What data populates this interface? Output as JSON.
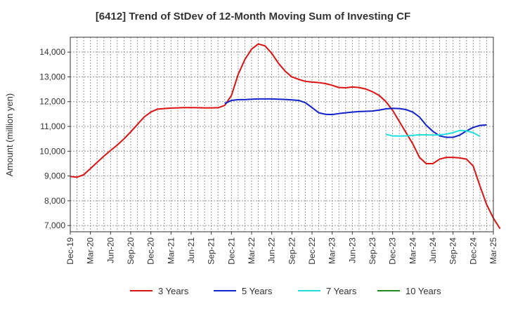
{
  "chart_data": {
    "type": "line",
    "title": "[6412]  Trend of StDev of 12-Month Moving Sum of Investing CF",
    "xlabel": "",
    "ylabel": "Amount (million yen)",
    "ylim": [
      6750,
      14600
    ],
    "yticks": [
      7000,
      8000,
      9000,
      10000,
      11000,
      12000,
      13000,
      14000
    ],
    "ytick_labels": [
      "7,000",
      "8,000",
      "9,000",
      "10,000",
      "11,000",
      "12,000",
      "13,000",
      "14,000"
    ],
    "xtick_labels": [
      "Dec-19",
      "Mar-20",
      "Jun-20",
      "Sep-20",
      "Dec-20",
      "Mar-21",
      "Jun-21",
      "Sep-21",
      "Dec-21",
      "Mar-22",
      "Jun-22",
      "Sep-22",
      "Dec-22",
      "Mar-23",
      "Jun-23",
      "Sep-23",
      "Dec-23",
      "Mar-24",
      "Jun-24",
      "Sep-24",
      "Dec-24",
      "Mar-25"
    ],
    "x_start": "Dec-19",
    "x_end": "Mar-25",
    "grid": true,
    "legend_position": "bottom",
    "series": [
      {
        "name": "3 Years",
        "color": "#dd1111",
        "start": "Dec-19",
        "values": [
          8980,
          8950,
          9050,
          9300,
          9550,
          9800,
          10030,
          10250,
          10500,
          10780,
          11080,
          11380,
          11580,
          11700,
          11720,
          11740,
          11750,
          11760,
          11760,
          11755,
          11750,
          11750,
          11755,
          11850,
          12250,
          13100,
          13700,
          14120,
          14330,
          14250,
          13950,
          13550,
          13230,
          13000,
          12900,
          12820,
          12790,
          12770,
          12730,
          12660,
          12570,
          12560,
          12590,
          12570,
          12510,
          12400,
          12250,
          12000,
          11650,
          11200,
          10750,
          10300,
          9750,
          9500,
          9500,
          9680,
          9750,
          9750,
          9730,
          9680,
          9400,
          8600,
          7850,
          7300,
          6870
        ]
      },
      {
        "name": "5 Years",
        "color": "#1122cc",
        "start": "Nov-21",
        "values": [
          11920,
          12050,
          12080,
          12080,
          12100,
          12110,
          12110,
          12110,
          12100,
          12090,
          12070,
          12050,
          11960,
          11760,
          11550,
          11490,
          11480,
          11520,
          11550,
          11580,
          11600,
          11610,
          11620,
          11660,
          11710,
          11730,
          11720,
          11680,
          11580,
          11380,
          11050,
          10800,
          10620,
          10560,
          10560,
          10650,
          10820,
          10960,
          11040,
          11060
        ]
      },
      {
        "name": "7 Years",
        "color": "#22dddd",
        "start": "Nov-23",
        "values": [
          10680,
          10620,
          10610,
          10620,
          10640,
          10660,
          10660,
          10650,
          10660,
          10690,
          10750,
          10840,
          10820,
          10750,
          10600
        ]
      },
      {
        "name": "10 Years",
        "color": "#228822",
        "start": "",
        "values": []
      }
    ]
  }
}
